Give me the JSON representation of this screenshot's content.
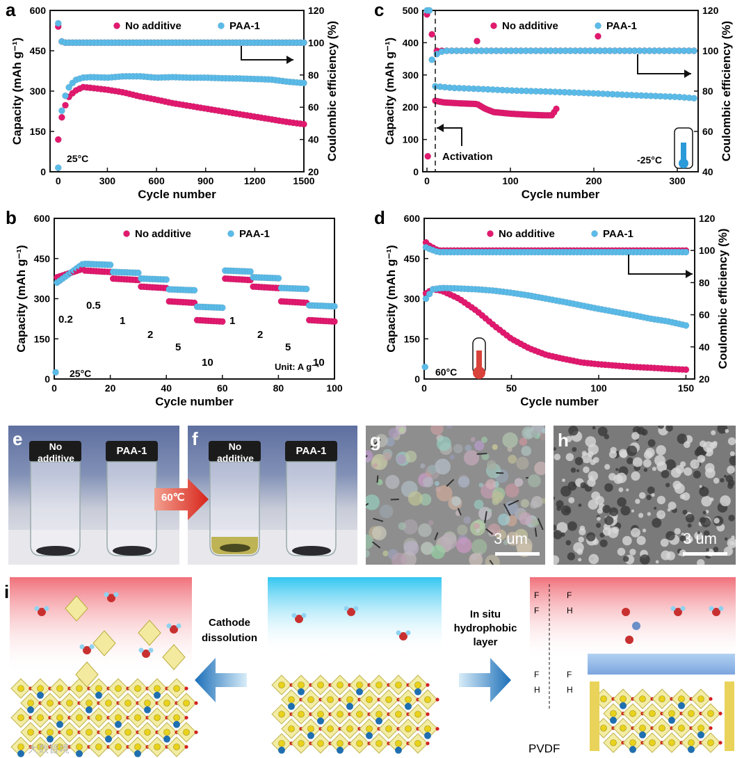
{
  "colors": {
    "pink": "#e2196f",
    "blue": "#5bbbe8",
    "dark": "#1a1a1a"
  },
  "chart_data": [
    {
      "panel": "a",
      "type": "scatter",
      "xlabel": "Cycle number",
      "ylabel": "Capacity (mAh g⁻¹)",
      "y2label": "Coulombic efficiency (%)",
      "xlim": [
        -50,
        1500
      ],
      "ylim": [
        0,
        600
      ],
      "y2lim": [
        20,
        120
      ],
      "xticks": [
        "0",
        "300",
        "600",
        "900",
        "1200",
        "1500"
      ],
      "yticks": [
        "0",
        "150",
        "300",
        "450",
        "600"
      ],
      "y2ticks": [
        "20",
        "40",
        "60",
        "80",
        "100",
        "120"
      ],
      "legend": [
        "No additive",
        "PAA-1"
      ],
      "annotation": "25°C",
      "series": [
        {
          "name": "No additive",
          "kind": "capacity",
          "x": [
            0,
            10,
            30,
            60,
            100,
            150,
            200,
            300,
            400,
            500,
            600,
            700,
            800,
            900,
            1000,
            1100,
            1200,
            1300,
            1400,
            1500
          ],
          "y": [
            120,
            170,
            225,
            275,
            300,
            315,
            312,
            305,
            295,
            280,
            268,
            255,
            245,
            235,
            225,
            215,
            205,
            195,
            185,
            177
          ]
        },
        {
          "name": "PAA-1",
          "kind": "capacity",
          "x": [
            0,
            10,
            30,
            60,
            100,
            150,
            200,
            300,
            400,
            500,
            600,
            700,
            800,
            900,
            1000,
            1100,
            1200,
            1300,
            1400,
            1500
          ],
          "y": [
            15,
            180,
            260,
            310,
            340,
            350,
            352,
            350,
            355,
            355,
            350,
            352,
            350,
            350,
            348,
            347,
            345,
            343,
            335,
            330
          ]
        },
        {
          "name": "No additive",
          "kind": "ce",
          "x": [
            0,
            5,
            15,
            40,
            100,
            300,
            600,
            900,
            1200,
            1500
          ],
          "y": [
            110,
            105,
            101,
            100,
            100,
            100,
            100,
            100,
            100,
            100
          ]
        },
        {
          "name": "PAA-1",
          "kind": "ce",
          "x": [
            0,
            5,
            15,
            40,
            100,
            300,
            600,
            900,
            1200,
            1500
          ],
          "y": [
            112,
            104,
            101,
            100,
            100,
            100,
            100,
            100,
            100,
            100
          ]
        }
      ]
    },
    {
      "panel": "b",
      "type": "scatter",
      "xlabel": "Cycle number",
      "ylabel": "Capacity (mAh g⁻¹)",
      "xlim": [
        0,
        100
      ],
      "ylim": [
        0,
        600
      ],
      "xticks": [
        "0",
        "20",
        "40",
        "60",
        "80",
        "100"
      ],
      "yticks": [
        "0",
        "150",
        "300",
        "450",
        "600"
      ],
      "legend": [
        "No additive",
        "PAA-1"
      ],
      "annotation": "25°C",
      "unit": "Unit: A g⁻¹",
      "rate_labels": [
        "0.2",
        "0.5",
        "1",
        "2",
        "5",
        "10",
        "1",
        "2",
        "5",
        "10"
      ],
      "steps_no_additive": [
        390,
        405,
        375,
        345,
        290,
        220,
        375,
        345,
        290,
        220
      ],
      "steps_paa": [
        370,
        430,
        400,
        375,
        335,
        270,
        405,
        380,
        340,
        275
      ]
    },
    {
      "panel": "c",
      "type": "scatter",
      "xlabel": "Cycle number",
      "ylabel": "Capacity (mAh g⁻¹)",
      "y2label": "Coulombic efficiency (%)",
      "xlim": [
        -5,
        325
      ],
      "ylim": [
        0,
        500
      ],
      "y2lim": [
        40,
        120
      ],
      "xticks": [
        "0",
        "100",
        "200",
        "300"
      ],
      "yticks": [
        "0",
        "100",
        "200",
        "300",
        "400",
        "500"
      ],
      "y2ticks": [
        "40",
        "60",
        "80",
        "100",
        "120"
      ],
      "legend": [
        "No additive",
        "PAA-1"
      ],
      "annotation": "-25°C",
      "activation": "Activation",
      "series": [
        {
          "name": "No additive",
          "kind": "capacity",
          "x": [
            10,
            20,
            40,
            60,
            70,
            80,
            100,
            120,
            140,
            150,
            155
          ],
          "y": [
            220,
            215,
            212,
            210,
            195,
            185,
            180,
            177,
            175,
            175,
            195
          ]
        },
        {
          "name": "PAA-1",
          "kind": "capacity",
          "x": [
            10,
            30,
            60,
            100,
            150,
            200,
            250,
            300,
            320
          ],
          "y": [
            265,
            260,
            257,
            252,
            248,
            243,
            237,
            232,
            228
          ]
        },
        {
          "name": "No additive",
          "kind": "ce",
          "x": [
            0,
            5,
            10,
            20,
            60,
            100,
            150,
            200,
            250,
            300,
            320
          ],
          "y": [
            118,
            110,
            100,
            100,
            100,
            100,
            100,
            100,
            100,
            100,
            100
          ]
        },
        {
          "name": "PAA-1",
          "kind": "ce",
          "x": [
            0,
            5,
            10,
            20,
            60,
            100,
            150,
            200,
            250,
            300,
            320
          ],
          "y": [
            120,
            95,
            98,
            100,
            100,
            100,
            100,
            100,
            100,
            100,
            100
          ]
        }
      ]
    },
    {
      "panel": "d",
      "type": "scatter",
      "xlabel": "Cycle number",
      "ylabel": "Capacity (mAh g⁻¹)",
      "y2label": "Coulombic efficiency (%)",
      "xlim": [
        0,
        155
      ],
      "ylim": [
        0,
        600
      ],
      "y2lim": [
        20,
        120
      ],
      "xticks": [
        "0",
        "50",
        "100",
        "150"
      ],
      "yticks": [
        "0",
        "150",
        "300",
        "450",
        "600"
      ],
      "y2ticks": [
        "20",
        "40",
        "60",
        "80",
        "100",
        "120"
      ],
      "legend": [
        "No additive",
        "PAA-1"
      ],
      "annotation": "60°C",
      "series": [
        {
          "name": "No additive",
          "kind": "capacity",
          "x": [
            1,
            5,
            10,
            20,
            30,
            40,
            50,
            60,
            70,
            80,
            90,
            100,
            110,
            120,
            130,
            140,
            150
          ],
          "y": [
            320,
            335,
            330,
            300,
            255,
            200,
            150,
            115,
            90,
            75,
            62,
            55,
            50,
            45,
            42,
            38,
            35
          ]
        },
        {
          "name": "PAA-1",
          "kind": "capacity",
          "x": [
            1,
            5,
            10,
            20,
            30,
            40,
            50,
            60,
            70,
            80,
            90,
            100,
            110,
            120,
            130,
            140,
            150
          ],
          "y": [
            300,
            335,
            340,
            338,
            335,
            330,
            322,
            312,
            300,
            288,
            275,
            262,
            250,
            238,
            225,
            215,
            200
          ]
        },
        {
          "name": "No additive",
          "kind": "ce",
          "x": [
            1,
            3,
            8,
            20,
            50,
            100,
            150
          ],
          "y": [
            105,
            103,
            100,
            100,
            100,
            100,
            100
          ]
        },
        {
          "name": "PAA-1",
          "kind": "ce",
          "x": [
            1,
            3,
            8,
            20,
            50,
            100,
            150
          ],
          "y": [
            102,
            101,
            99,
            99,
            99,
            99,
            99
          ]
        }
      ]
    }
  ],
  "photos": {
    "e": {
      "tag": "e",
      "left": "No\nadditive",
      "right": "PAA-1"
    },
    "f": {
      "tag": "f",
      "left": "No\nadditive",
      "right": "PAA-1"
    },
    "arrow": "60℃",
    "g": {
      "tag": "g",
      "scale": "3 um"
    },
    "h": {
      "tag": "h",
      "scale": "3 um"
    }
  },
  "schematic": {
    "tag": "i",
    "left_label": "Cathode dissolution",
    "right_label": "In situ hydrophobic layer",
    "pvdf": "PVDF",
    "watermark": "大数智境"
  }
}
